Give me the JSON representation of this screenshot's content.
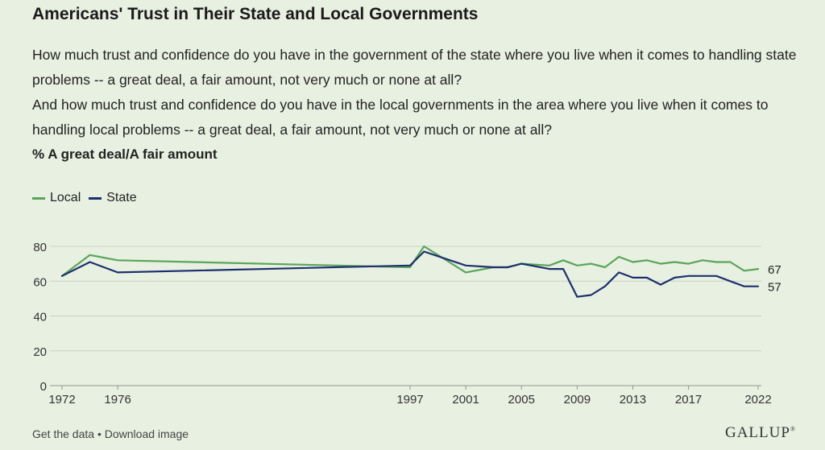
{
  "header": {
    "title": "Americans' Trust in Their State and Local Governments",
    "question1": "How much trust and confidence do you have in the government of the state where you live when it comes to handling state problems -- a great deal, a fair amount, not very much or none at all?",
    "question2": "And how much trust and confidence do you have in the local governments in the area where you live when it comes to handling local problems -- a great deal, a fair amount, not very much or none at all?",
    "measure": "% A great deal/A fair amount"
  },
  "legend": {
    "local_label": "Local",
    "state_label": "State"
  },
  "footer": {
    "get_data": "Get the data",
    "separator": "•",
    "download": "Download image",
    "logo": "GALLUP"
  },
  "colors": {
    "local": "#5aa55a",
    "state": "#1d2f6f",
    "grid": "#c9d3c2",
    "background": "#e8f0e1"
  },
  "chart_data": {
    "type": "line",
    "title": "",
    "xlabel": "",
    "ylabel": "",
    "ylim": [
      0,
      80
    ],
    "xlim": [
      1972,
      2022
    ],
    "y_ticks": [
      0,
      20,
      40,
      60,
      80
    ],
    "x_tick_labels": [
      "1972",
      "1976",
      "1997",
      "2001",
      "2005",
      "2009",
      "2013",
      "2017",
      "2022"
    ],
    "grid": true,
    "legend_position": "top-left",
    "series": [
      {
        "name": "Local",
        "color": "#5aa55a",
        "end_label": "67",
        "points": [
          [
            1972,
            63
          ],
          [
            1974,
            75
          ],
          [
            1976,
            72
          ],
          [
            1997,
            68
          ],
          [
            1998,
            80
          ],
          [
            2001,
            65
          ],
          [
            2003,
            68
          ],
          [
            2004,
            68
          ],
          [
            2005,
            70
          ],
          [
            2007,
            69
          ],
          [
            2008,
            72
          ],
          [
            2009,
            69
          ],
          [
            2010,
            70
          ],
          [
            2011,
            68
          ],
          [
            2012,
            74
          ],
          [
            2013,
            71
          ],
          [
            2014,
            72
          ],
          [
            2015,
            70
          ],
          [
            2016,
            71
          ],
          [
            2017,
            70
          ],
          [
            2018,
            72
          ],
          [
            2019,
            71
          ],
          [
            2020,
            71
          ],
          [
            2021,
            66
          ],
          [
            2022,
            67
          ]
        ]
      },
      {
        "name": "State",
        "color": "#1d2f6f",
        "end_label": "57",
        "points": [
          [
            1972,
            63
          ],
          [
            1974,
            71
          ],
          [
            1976,
            65
          ],
          [
            1997,
            69
          ],
          [
            1998,
            77
          ],
          [
            2001,
            69
          ],
          [
            2003,
            68
          ],
          [
            2004,
            68
          ],
          [
            2005,
            70
          ],
          [
            2007,
            67
          ],
          [
            2008,
            67
          ],
          [
            2009,
            51
          ],
          [
            2010,
            52
          ],
          [
            2011,
            57
          ],
          [
            2012,
            65
          ],
          [
            2013,
            62
          ],
          [
            2014,
            62
          ],
          [
            2015,
            58
          ],
          [
            2016,
            62
          ],
          [
            2017,
            63
          ],
          [
            2018,
            63
          ],
          [
            2019,
            63
          ],
          [
            2020,
            60
          ],
          [
            2021,
            57
          ],
          [
            2022,
            57
          ]
        ]
      }
    ]
  }
}
